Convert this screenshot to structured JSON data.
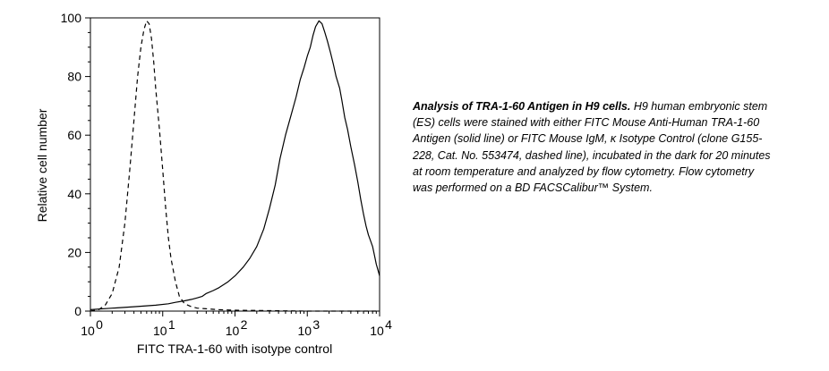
{
  "chart_data": {
    "type": "line",
    "xlabel": "FITC TRA-1-60 with isotype control",
    "ylabel": "Relative cell number",
    "x_scale": "log",
    "xlim": [
      1,
      10000
    ],
    "ylim": [
      0,
      100
    ],
    "x_ticks": [
      {
        "base": "10",
        "exp": "0"
      },
      {
        "base": "10",
        "exp": "1"
      },
      {
        "base": "10",
        "exp": "2"
      },
      {
        "base": "10",
        "exp": "3"
      },
      {
        "base": "10",
        "exp": "4"
      }
    ],
    "y_ticks": [
      "0",
      "20",
      "40",
      "60",
      "80",
      "100"
    ],
    "grid": false,
    "series": [
      {
        "style": "solid",
        "color": "#000000",
        "x": [
          1,
          2,
          4,
          8,
          12,
          15,
          20,
          25,
          30,
          35,
          40,
          50,
          60,
          80,
          100,
          130,
          160,
          200,
          250,
          300,
          360,
          420,
          500,
          600,
          700,
          800,
          900,
          1000,
          1100,
          1200,
          1300,
          1450,
          1600,
          1750,
          1900,
          2100,
          2300,
          2500,
          2800,
          3000,
          3300,
          3600,
          4000,
          4500,
          5000,
          5500,
          6000,
          6500,
          7000,
          7500,
          8000,
          8500,
          9000,
          9500,
          10000
        ],
        "y": [
          0.5,
          1,
          1.5,
          2,
          2.5,
          3,
          3.5,
          4,
          4.5,
          5,
          6,
          7,
          8,
          10,
          12,
          15,
          18,
          22,
          28,
          35,
          43,
          52,
          60,
          67,
          73,
          79,
          83,
          87,
          90,
          94,
          97,
          99,
          98,
          95,
          92,
          88,
          84,
          80,
          76,
          72,
          66,
          62,
          56,
          50,
          44,
          38,
          33,
          29,
          26,
          24,
          22,
          19,
          16,
          14,
          12
        ]
      },
      {
        "style": "dashed",
        "color": "#000000",
        "x": [
          1,
          1.3,
          1.6,
          2,
          2.5,
          3,
          3.5,
          4,
          4.5,
          5,
          5.5,
          6,
          6.5,
          7,
          7.5,
          8,
          9,
          10,
          11,
          12,
          13,
          15,
          17,
          20,
          25,
          30,
          40,
          60,
          100,
          200,
          500,
          1000,
          3000,
          10000
        ],
        "y": [
          0,
          0.5,
          2,
          6,
          15,
          30,
          48,
          65,
          80,
          90,
          96,
          99,
          98,
          93,
          85,
          76,
          62,
          48,
          35,
          25,
          18,
          10,
          5,
          2.5,
          1.5,
          1,
          0.8,
          0.5,
          0.3,
          0.2,
          0.1,
          0,
          0,
          0
        ]
      }
    ]
  },
  "caption": {
    "title": "Analysis of TRA-1-60 Antigen in H9 cells.",
    "body": " H9 human embryonic stem (ES) cells were stained with either FITC Mouse Anti-Human TRA-1-60 Antigen (solid line) or FITC Mouse IgM, κ Isotype Control (clone G155-228, Cat. No. 553474, dashed line), incubated in the dark for 20 minutes at room temperature and analyzed by flow cytometry. Flow cytometry was performed on a BD FACSCalibur™ System."
  }
}
